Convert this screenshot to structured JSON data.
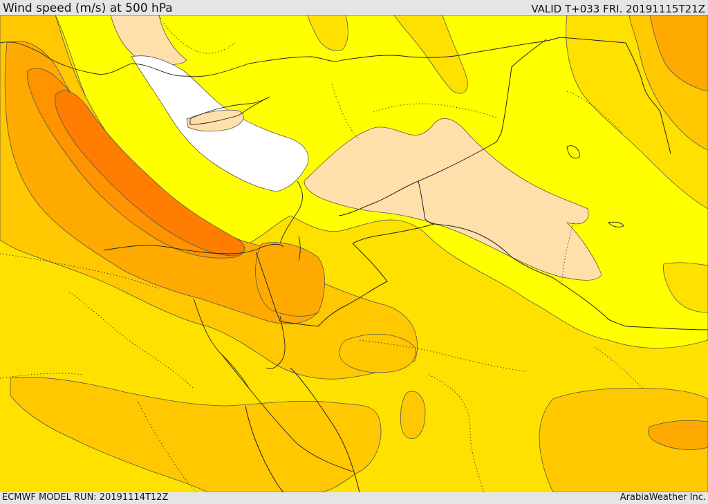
{
  "header": {
    "title": "Wind speed (m/s) at 500 hPa",
    "valid": "VALID T+033 FRI. 20191115T21Z"
  },
  "footer": {
    "model_run": "ECMWF MODEL RUN: 20191114T12Z",
    "credit": "ArabiaWeather Inc."
  },
  "map": {
    "colors": {
      "calm": "#ffffff",
      "light": "#ffe0aa",
      "yellow": "#ffff00",
      "gold": "#ffe100",
      "amber": "#ffc800",
      "orange_light": "#ffaa00",
      "orange": "#ff9400",
      "orange_dark": "#ff7d00"
    }
  }
}
